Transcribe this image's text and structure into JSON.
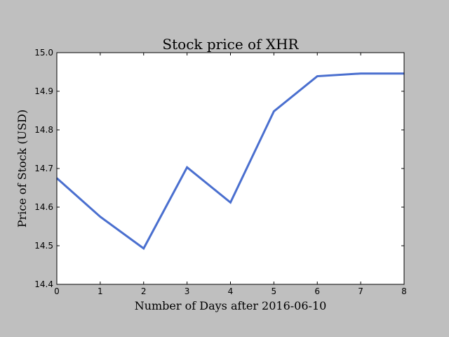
{
  "chart_data": {
    "type": "line",
    "title": "Stock price of XHR",
    "xlabel": "Number of Days after 2016-06-10",
    "ylabel": "Price of Stock (USD)",
    "xlim": [
      0,
      8
    ],
    "ylim": [
      14.4,
      15.0
    ],
    "x_ticks": [
      0,
      1,
      2,
      3,
      4,
      5,
      6,
      7,
      8
    ],
    "y_ticks": [
      14.4,
      14.5,
      14.6,
      14.7,
      14.8,
      14.9,
      15.0
    ],
    "x_tick_labels": [
      "0",
      "1",
      "2",
      "3",
      "4",
      "5",
      "6",
      "7",
      "8"
    ],
    "y_tick_labels": [
      "14.4",
      "14.5",
      "14.6",
      "14.7",
      "14.8",
      "14.9",
      "15.0"
    ],
    "grid": false,
    "legend": "none",
    "series": [
      {
        "color": "#4a6fcf",
        "x": [
          0,
          1,
          2,
          3,
          4,
          5,
          6,
          7,
          8
        ],
        "y": [
          14.675,
          14.575,
          14.493,
          14.703,
          14.612,
          14.848,
          14.939,
          14.946,
          14.946
        ]
      }
    ]
  }
}
